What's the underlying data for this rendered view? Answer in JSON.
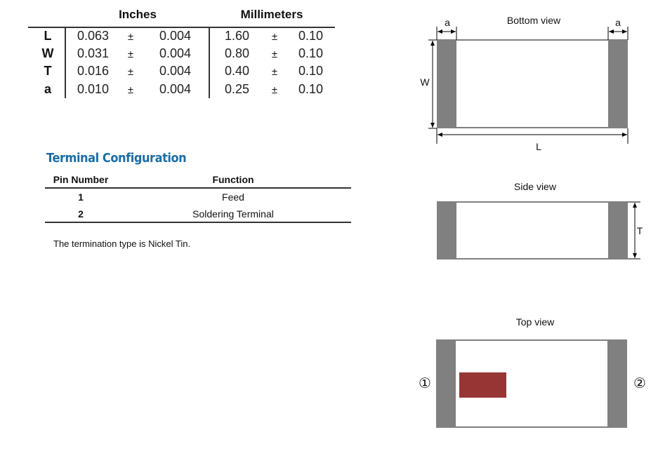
{
  "dimensions_table": {
    "headers": {
      "inches": "Inches",
      "millimeters": "Millimeters"
    },
    "rows": [
      {
        "label": "L",
        "in_nominal": "0.063",
        "pm": "±",
        "in_tol": "0.004",
        "mm_nominal": "1.60",
        "mm_tol": "0.10"
      },
      {
        "label": "W",
        "in_nominal": "0.031",
        "pm": "±",
        "in_tol": "0.004",
        "mm_nominal": "0.80",
        "mm_tol": "0.10"
      },
      {
        "label": "T",
        "in_nominal": "0.016",
        "pm": "±",
        "in_tol": "0.004",
        "mm_nominal": "0.40",
        "mm_tol": "0.10"
      },
      {
        "label": "a",
        "in_nominal": "0.010",
        "pm": "±",
        "in_tol": "0.004",
        "mm_nominal": "0.25",
        "mm_tol": "0.10"
      }
    ]
  },
  "terminal_configuration": {
    "title": "Terminal Configuration",
    "headers": {
      "pin": "Pin Number",
      "function": "Function"
    },
    "rows": [
      {
        "pin": "1",
        "function": "Feed"
      },
      {
        "pin": "2",
        "function": "Soldering Terminal"
      }
    ],
    "note": "The termination type is Nickel Tin."
  },
  "diagrams": {
    "bottom": {
      "title": "Bottom view",
      "a_left": "a",
      "a_right": "a",
      "w": "W",
      "l": "L"
    },
    "side": {
      "title": "Side view",
      "t": "T"
    },
    "top": {
      "title": "Top view",
      "pin1": "①",
      "pin2": "②"
    }
  },
  "colors": {
    "terminal": "#808080",
    "marking": "#973535",
    "heading": "#1b6ea6"
  }
}
